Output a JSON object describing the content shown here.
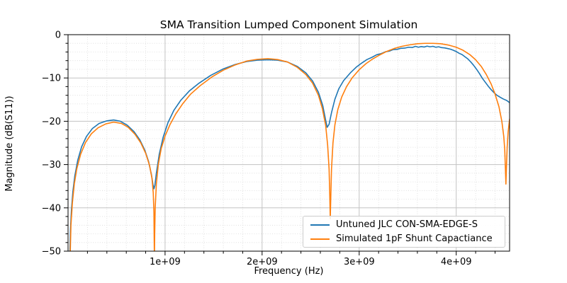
{
  "chart_data": {
    "type": "line",
    "title": "SMA Transition Lumped Component Simulation",
    "xlabel": "Frequency (Hz)",
    "ylabel": "Magnitude (dB(S11))",
    "x_unit_scale_hz": 1000000000.0,
    "xlim_ghz": [
      0,
      4.55
    ],
    "ylim": [
      -50,
      0
    ],
    "grid": "both",
    "legend_position": "lower right",
    "xticks": [
      {
        "ghz": 1,
        "label": "1e+09"
      },
      {
        "ghz": 2,
        "label": "2e+09"
      },
      {
        "ghz": 3,
        "label": "3e+09"
      },
      {
        "ghz": 4,
        "label": "4e+09"
      }
    ],
    "yticks": [
      {
        "value": 0,
        "label": "0"
      },
      {
        "value": -10,
        "label": "−10"
      },
      {
        "value": -20,
        "label": "−20"
      },
      {
        "value": -30,
        "label": "−30"
      },
      {
        "value": -40,
        "label": "−40"
      },
      {
        "value": -50,
        "label": "−50"
      }
    ],
    "minor_x_step_ghz": 0.2,
    "minor_y_step_db": 2,
    "colors": {
      "major_grid": "#c3c3c3",
      "minor_grid": "#d9d9d9",
      "spine": "#000000",
      "text": "#000000"
    },
    "series": [
      {
        "name": "Untuned JLC CON-SMA-EDGE-S",
        "color": "#1f77b4",
        "style": "measured-noisy",
        "points_ghz_db": [
          [
            0.018,
            -51
          ],
          [
            0.025,
            -45
          ],
          [
            0.035,
            -40.5
          ],
          [
            0.05,
            -36.2
          ],
          [
            0.07,
            -32.6
          ],
          [
            0.1,
            -29.0
          ],
          [
            0.14,
            -25.9
          ],
          [
            0.19,
            -23.5
          ],
          [
            0.25,
            -21.7
          ],
          [
            0.32,
            -20.5
          ],
          [
            0.4,
            -19.9
          ],
          [
            0.47,
            -19.7
          ],
          [
            0.54,
            -20.0
          ],
          [
            0.61,
            -20.9
          ],
          [
            0.68,
            -22.4
          ],
          [
            0.74,
            -24.3
          ],
          [
            0.79,
            -26.6
          ],
          [
            0.83,
            -29.3
          ],
          [
            0.86,
            -32.4
          ],
          [
            0.875,
            -34.6
          ],
          [
            0.885,
            -35.6
          ],
          [
            0.895,
            -34.8
          ],
          [
            0.91,
            -32.0
          ],
          [
            0.94,
            -27.6
          ],
          [
            0.98,
            -23.7
          ],
          [
            1.03,
            -20.3
          ],
          [
            1.09,
            -17.5
          ],
          [
            1.16,
            -15.2
          ],
          [
            1.25,
            -13.0
          ],
          [
            1.35,
            -11.2
          ],
          [
            1.47,
            -9.4
          ],
          [
            1.6,
            -7.9
          ],
          [
            1.72,
            -6.9
          ],
          [
            1.84,
            -6.2
          ],
          [
            1.95,
            -5.9
          ],
          [
            2.06,
            -5.8
          ],
          [
            2.16,
            -5.9
          ],
          [
            2.26,
            -6.3
          ],
          [
            2.36,
            -7.3
          ],
          [
            2.45,
            -8.8
          ],
          [
            2.52,
            -10.7
          ],
          [
            2.58,
            -13.3
          ],
          [
            2.625,
            -16.4
          ],
          [
            2.655,
            -19.8
          ],
          [
            2.67,
            -21.4
          ],
          [
            2.69,
            -20.7
          ],
          [
            2.715,
            -18.0
          ],
          [
            2.75,
            -14.9
          ],
          [
            2.79,
            -12.5
          ],
          [
            2.84,
            -10.6
          ],
          [
            2.91,
            -8.8
          ],
          [
            2.97,
            -7.5
          ],
          [
            3.03,
            -6.5
          ],
          [
            3.08,
            -5.75
          ],
          [
            3.13,
            -5.25
          ],
          [
            3.18,
            -4.65
          ],
          [
            3.23,
            -4.35
          ],
          [
            3.27,
            -3.95
          ],
          [
            3.31,
            -3.8
          ],
          [
            3.35,
            -3.45
          ],
          [
            3.39,
            -3.4
          ],
          [
            3.43,
            -3.15
          ],
          [
            3.47,
            -3.1
          ],
          [
            3.51,
            -2.9
          ],
          [
            3.55,
            -2.95
          ],
          [
            3.58,
            -2.7
          ],
          [
            3.61,
            -2.9
          ],
          [
            3.64,
            -2.75
          ],
          [
            3.67,
            -2.85
          ],
          [
            3.7,
            -2.65
          ],
          [
            3.73,
            -2.8
          ],
          [
            3.76,
            -2.7
          ],
          [
            3.79,
            -2.9
          ],
          [
            3.82,
            -2.8
          ],
          [
            3.85,
            -3.0
          ],
          [
            3.88,
            -3.05
          ],
          [
            3.91,
            -3.2
          ],
          [
            3.94,
            -3.35
          ],
          [
            3.97,
            -3.6
          ],
          [
            4.0,
            -3.9
          ],
          [
            4.03,
            -4.3
          ],
          [
            4.06,
            -4.6
          ],
          [
            4.09,
            -5.1
          ],
          [
            4.12,
            -5.6
          ],
          [
            4.15,
            -6.3
          ],
          [
            4.18,
            -7.1
          ],
          [
            4.21,
            -8.0
          ],
          [
            4.24,
            -9.0
          ],
          [
            4.27,
            -10.1
          ],
          [
            4.3,
            -11.0
          ],
          [
            4.33,
            -11.9
          ],
          [
            4.36,
            -12.7
          ],
          [
            4.39,
            -13.4
          ],
          [
            4.42,
            -14.0
          ],
          [
            4.45,
            -14.4
          ],
          [
            4.48,
            -14.8
          ],
          [
            4.5,
            -15.0
          ],
          [
            4.52,
            -15.2
          ],
          [
            4.55,
            -15.7
          ]
        ]
      },
      {
        "name": "Simulated 1pF Shunt Capactiance",
        "color": "#ff7f0e",
        "style": "simulated-smooth",
        "points_ghz_db": [
          [
            0.022,
            -51
          ],
          [
            0.03,
            -44
          ],
          [
            0.045,
            -38.8
          ],
          [
            0.065,
            -34.4
          ],
          [
            0.09,
            -31.0
          ],
          [
            0.13,
            -27.6
          ],
          [
            0.18,
            -24.9
          ],
          [
            0.24,
            -22.9
          ],
          [
            0.31,
            -21.5
          ],
          [
            0.39,
            -20.6
          ],
          [
            0.47,
            -20.2
          ],
          [
            0.55,
            -20.5
          ],
          [
            0.62,
            -21.4
          ],
          [
            0.69,
            -23.0
          ],
          [
            0.75,
            -25.0
          ],
          [
            0.8,
            -27.4
          ],
          [
            0.84,
            -30.2
          ],
          [
            0.865,
            -33.2
          ],
          [
            0.878,
            -36.5
          ],
          [
            0.885,
            -41.0
          ],
          [
            0.888,
            -48.0
          ],
          [
            0.89,
            -52.0
          ],
          [
            0.893,
            -46.0
          ],
          [
            0.898,
            -40.0
          ],
          [
            0.91,
            -34.5
          ],
          [
            0.93,
            -30.0
          ],
          [
            0.96,
            -26.3
          ],
          [
            1.0,
            -23.4
          ],
          [
            1.05,
            -20.8
          ],
          [
            1.11,
            -18.3
          ],
          [
            1.18,
            -16.0
          ],
          [
            1.26,
            -13.8
          ],
          [
            1.36,
            -11.8
          ],
          [
            1.48,
            -9.8
          ],
          [
            1.6,
            -8.2
          ],
          [
            1.72,
            -7.0
          ],
          [
            1.84,
            -6.1
          ],
          [
            1.95,
            -5.7
          ],
          [
            2.06,
            -5.55
          ],
          [
            2.16,
            -5.75
          ],
          [
            2.26,
            -6.3
          ],
          [
            2.36,
            -7.5
          ],
          [
            2.45,
            -9.2
          ],
          [
            2.52,
            -11.2
          ],
          [
            2.58,
            -14.0
          ],
          [
            2.62,
            -17.0
          ],
          [
            2.655,
            -21.0
          ],
          [
            2.675,
            -25.5
          ],
          [
            2.69,
            -31.0
          ],
          [
            2.698,
            -38.0
          ],
          [
            2.702,
            -42.5
          ],
          [
            2.707,
            -38.0
          ],
          [
            2.715,
            -31.0
          ],
          [
            2.73,
            -25.0
          ],
          [
            2.75,
            -20.8
          ],
          [
            2.78,
            -17.3
          ],
          [
            2.82,
            -14.4
          ],
          [
            2.87,
            -12.0
          ],
          [
            2.93,
            -9.9
          ],
          [
            3.0,
            -8.1
          ],
          [
            3.07,
            -6.7
          ],
          [
            3.14,
            -5.6
          ],
          [
            3.21,
            -4.7
          ],
          [
            3.28,
            -3.9
          ],
          [
            3.36,
            -3.2
          ],
          [
            3.44,
            -2.7
          ],
          [
            3.52,
            -2.35
          ],
          [
            3.6,
            -2.1
          ],
          [
            3.68,
            -2.0
          ],
          [
            3.76,
            -2.0
          ],
          [
            3.84,
            -2.1
          ],
          [
            3.92,
            -2.4
          ],
          [
            4.0,
            -2.9
          ],
          [
            4.07,
            -3.6
          ],
          [
            4.14,
            -4.6
          ],
          [
            4.2,
            -5.8
          ],
          [
            4.26,
            -7.4
          ],
          [
            4.31,
            -9.2
          ],
          [
            4.36,
            -11.4
          ],
          [
            4.4,
            -13.7
          ],
          [
            4.44,
            -16.6
          ],
          [
            4.47,
            -20.0
          ],
          [
            4.49,
            -23.5
          ],
          [
            4.5,
            -26.5
          ],
          [
            4.507,
            -31.0
          ],
          [
            4.512,
            -34.5
          ],
          [
            4.517,
            -31.0
          ],
          [
            4.525,
            -26.0
          ],
          [
            4.535,
            -22.5
          ],
          [
            4.55,
            -19.5
          ]
        ]
      }
    ]
  }
}
